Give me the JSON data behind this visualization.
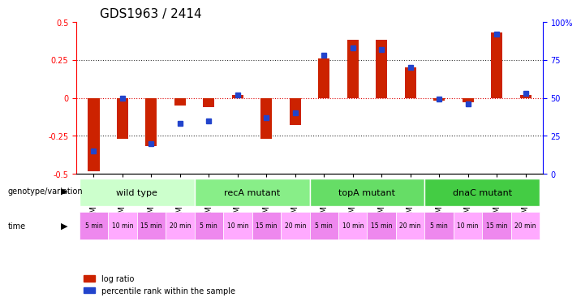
{
  "title": "GDS1963 / 2414",
  "samples": [
    "GSM99380",
    "GSM99384",
    "GSM99386",
    "GSM99389",
    "GSM99390",
    "GSM99391",
    "GSM99392",
    "GSM99393",
    "GSM99394",
    "GSM99395",
    "GSM99396",
    "GSM99397",
    "GSM99398",
    "GSM99399",
    "GSM99400",
    "GSM99401"
  ],
  "log_ratio": [
    -0.48,
    -0.27,
    -0.315,
    -0.05,
    -0.06,
    0.02,
    -0.27,
    -0.18,
    0.26,
    0.38,
    0.38,
    0.2,
    -0.02,
    -0.03,
    0.43,
    0.02
  ],
  "pct_rank": [
    15,
    50,
    20,
    33,
    35,
    52,
    37,
    40,
    78,
    83,
    82,
    70,
    49,
    46,
    92,
    53
  ],
  "groups": [
    {
      "label": "wild type",
      "start": 0,
      "end": 4,
      "color": "#ccffcc"
    },
    {
      "label": "recA mutant",
      "start": 4,
      "end": 8,
      "color": "#88ee88"
    },
    {
      "label": "topA mutant",
      "start": 8,
      "end": 12,
      "color": "#66dd66"
    },
    {
      "label": "dnaC mutant",
      "start": 12,
      "end": 16,
      "color": "#44cc44"
    }
  ],
  "time_labels": [
    "5 min",
    "10 min",
    "15 min",
    "20 min",
    "5 min",
    "10 min",
    "15 min",
    "20 min",
    "5 min",
    "10 min",
    "15 min",
    "20 min",
    "5 min",
    "10 min",
    "15 min",
    "20 min"
  ],
  "time_color": "#ee88ee",
  "ylim": [
    -0.5,
    0.5
  ],
  "yticks_left": [
    -0.5,
    -0.25,
    0,
    0.25,
    0.5
  ],
  "yticks_right": [
    0,
    25,
    50,
    75,
    100
  ],
  "bar_color_red": "#cc2200",
  "bar_color_blue": "#2244cc",
  "dotted_line_color": "#333333",
  "zero_line_color": "#dd0000",
  "bg_color": "#ffffff",
  "title_fontsize": 11,
  "tick_fontsize": 7,
  "label_fontsize": 8
}
